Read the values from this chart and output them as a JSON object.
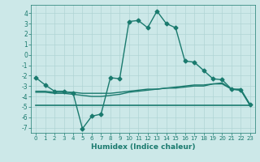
{
  "xlabel": "Humidex (Indice chaleur)",
  "xlim": [
    -0.5,
    23.5
  ],
  "ylim": [
    -7.5,
    4.8
  ],
  "yticks": [
    -7,
    -6,
    -5,
    -4,
    -3,
    -2,
    -1,
    0,
    1,
    2,
    3,
    4
  ],
  "xticks": [
    0,
    1,
    2,
    3,
    4,
    5,
    6,
    7,
    8,
    9,
    10,
    11,
    12,
    13,
    14,
    15,
    16,
    17,
    18,
    19,
    20,
    21,
    22,
    23
  ],
  "bg_color": "#cce8e8",
  "line_color": "#1a7a6e",
  "grid_color": "#b0d4d4",
  "lines": [
    {
      "x": [
        0,
        1,
        2,
        3,
        4,
        5,
        6,
        7,
        8,
        9,
        10,
        11,
        12,
        13,
        14,
        15,
        16,
        17,
        18,
        19,
        20,
        21,
        22,
        23
      ],
      "y": [
        -2.2,
        -2.9,
        -3.5,
        -3.5,
        -3.7,
        -7.1,
        -5.9,
        -5.7,
        -2.2,
        -2.3,
        3.2,
        3.3,
        2.6,
        4.2,
        3.0,
        2.6,
        -0.6,
        -0.7,
        -1.5,
        -2.3,
        -2.4,
        -3.3,
        -3.4,
        -4.8
      ],
      "marker": "D",
      "markersize": 2.5,
      "lw": 1.0
    },
    {
      "x": [
        0,
        1,
        2,
        3,
        4,
        5,
        6,
        7,
        8,
        9,
        10,
        11,
        12,
        13,
        14,
        15,
        16,
        17,
        18,
        19,
        20,
        21,
        22,
        23
      ],
      "y": [
        -3.5,
        -3.5,
        -3.6,
        -3.6,
        -3.6,
        -3.7,
        -3.7,
        -3.7,
        -3.7,
        -3.6,
        -3.5,
        -3.4,
        -3.3,
        -3.3,
        -3.2,
        -3.2,
        -3.1,
        -3.0,
        -3.0,
        -2.8,
        -2.7,
        -3.3,
        -3.3,
        -4.8
      ],
      "marker": null,
      "markersize": 0,
      "lw": 1.0
    },
    {
      "x": [
        0,
        1,
        2,
        3,
        4,
        5,
        6,
        7,
        8,
        9,
        10,
        11,
        12,
        13,
        14,
        15,
        16,
        17,
        18,
        19,
        20,
        21,
        22,
        23
      ],
      "y": [
        -3.6,
        -3.6,
        -3.7,
        -3.7,
        -3.8,
        -3.9,
        -4.0,
        -4.0,
        -3.9,
        -3.8,
        -3.6,
        -3.5,
        -3.4,
        -3.3,
        -3.2,
        -3.1,
        -3.0,
        -2.9,
        -2.9,
        -2.8,
        -2.8,
        -3.3,
        -3.4,
        -4.9
      ],
      "marker": null,
      "markersize": 0,
      "lw": 1.0
    },
    {
      "x": [
        0,
        23
      ],
      "y": [
        -4.85,
        -4.85
      ],
      "marker": null,
      "markersize": 0,
      "lw": 1.2
    }
  ]
}
